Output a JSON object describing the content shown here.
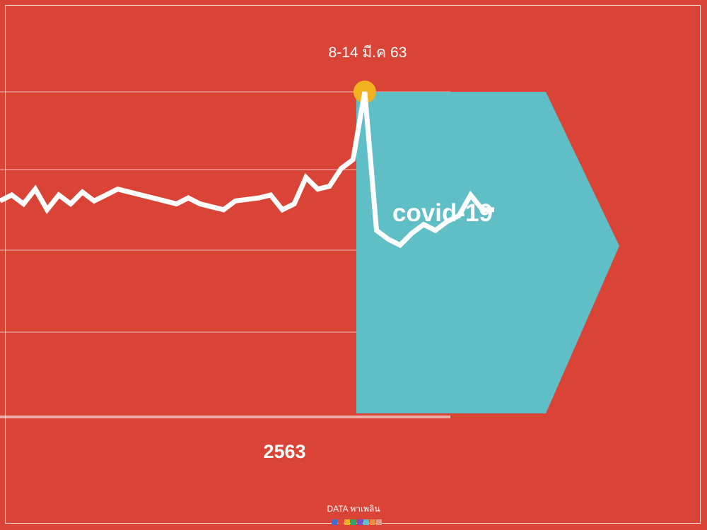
{
  "chart_data": {
    "type": "line",
    "title": "",
    "xlabel": "2563",
    "ylabel": "",
    "grid": true,
    "x": [
      0,
      1,
      2,
      3,
      4,
      5,
      6,
      7,
      8,
      9,
      10,
      11,
      12,
      13,
      14,
      15,
      16,
      17,
      18,
      19,
      20,
      21,
      22,
      23,
      24,
      25,
      26,
      27,
      28,
      29,
      30,
      31,
      32,
      33,
      34,
      35,
      36,
      37,
      38,
      39,
      40,
      41,
      42
    ],
    "y": [
      35,
      33,
      36,
      31,
      38,
      33,
      36,
      32,
      35,
      33,
      31,
      32,
      33,
      34,
      35,
      36,
      34,
      36,
      37,
      38,
      35,
      34.5,
      34,
      33,
      38,
      36,
      27,
      31,
      30,
      24,
      21,
      -2,
      45,
      48,
      50,
      46,
      43,
      45,
      42,
      40,
      33,
      38,
      38
    ],
    "ylim": [
      -2,
      80
    ],
    "peak_label": "8-14 มี.ค 63",
    "highlight_label": "covid-19",
    "colors": {
      "background": "#d94437",
      "line": "#ffffff",
      "highlight": "#5fbec6",
      "peak_marker": "#f2b21f"
    }
  },
  "brand": {
    "label": "DATA พาเพลิน",
    "swatch_colors": [
      "#3b6fd4",
      "#e04a3d",
      "#f2b21f",
      "#2fa86b",
      "#7a4fc9",
      "#5fbec6",
      "#f08a3c",
      "#e39a8c"
    ]
  }
}
